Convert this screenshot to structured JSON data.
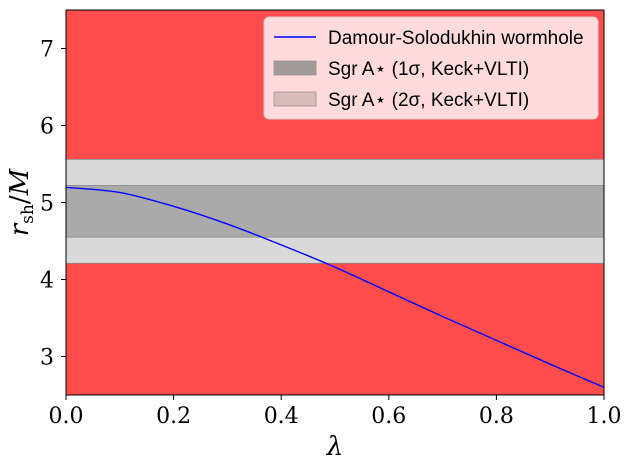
{
  "chart_data": {
    "type": "line",
    "xlabel": "λ",
    "ylabel": "r_sh/M",
    "xlim": [
      0.0,
      1.0
    ],
    "ylim": [
      2.5,
      7.5
    ],
    "x_ticks": [
      {
        "value": 0.0,
        "label": "0.0"
      },
      {
        "value": 0.2,
        "label": "0.2"
      },
      {
        "value": 0.4,
        "label": "0.4"
      },
      {
        "value": 0.6,
        "label": "0.6"
      },
      {
        "value": 0.8,
        "label": "0.8"
      },
      {
        "value": 1.0,
        "label": "1.0"
      }
    ],
    "y_ticks": [
      {
        "value": 3,
        "label": "3"
      },
      {
        "value": 4,
        "label": "4"
      },
      {
        "value": 5,
        "label": "5"
      },
      {
        "value": 6,
        "label": "6"
      },
      {
        "value": 7,
        "label": "7"
      }
    ],
    "excluded_color": "#ff4d4d",
    "bands": [
      {
        "name": "Sgr A⋆ (2σ, Keck+VLTI)",
        "low": 4.21,
        "high": 5.56,
        "color": "#d9d9d9"
      },
      {
        "name": "Sgr A⋆ (1σ, Keck+VLTI)",
        "low": 4.55,
        "high": 5.22,
        "color": "#aaaaaa"
      }
    ],
    "series": [
      {
        "name": "Damour-Solodukhin wormhole",
        "color": "#0000ff",
        "x": [
          0.0,
          0.1,
          0.2,
          0.3,
          0.4,
          0.5,
          0.6,
          0.7,
          0.8,
          0.9,
          1.0
        ],
        "y": [
          5.196,
          5.13,
          4.95,
          4.72,
          4.45,
          4.16,
          3.84,
          3.52,
          3.21,
          2.9,
          2.6
        ]
      }
    ],
    "legend": {
      "position": "top-right",
      "entries": [
        {
          "label": "Damour-Solodukhin wormhole",
          "kind": "line",
          "color": "#0000ff"
        },
        {
          "label": "Sgr A⋆ (1σ, Keck+VLTI)",
          "kind": "patch",
          "color": "#a09a9a"
        },
        {
          "label": "Sgr A⋆ (2σ, Keck+VLTI)",
          "kind": "patch",
          "color": "#d8bcbc"
        }
      ]
    }
  }
}
